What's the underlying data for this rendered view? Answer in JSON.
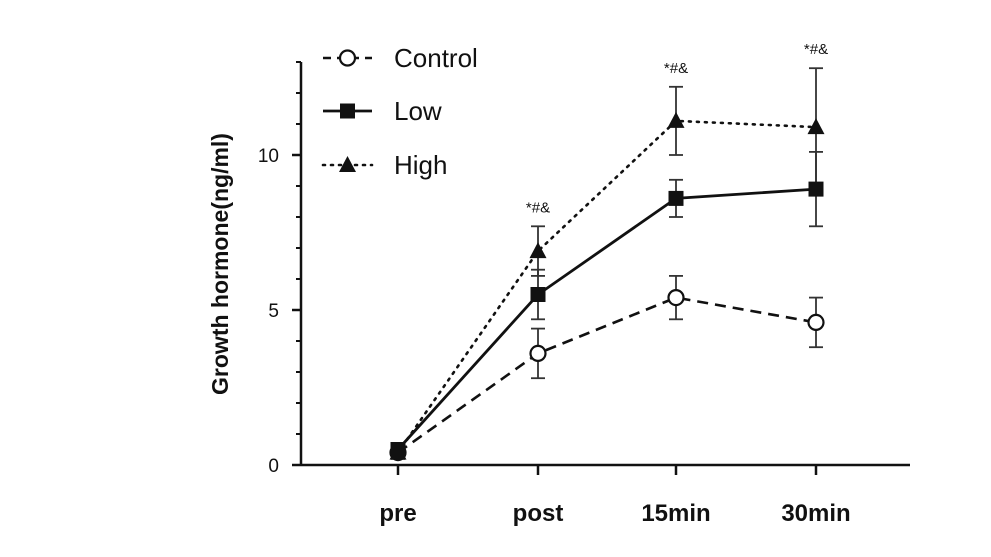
{
  "chart_data": {
    "type": "line",
    "title": "",
    "xlabel": "",
    "ylabel": "Growth hormone(ng/ml)",
    "categories": [
      "pre",
      "post",
      "15min",
      "30min"
    ],
    "ylim": [
      0,
      13
    ],
    "yticks": [
      0,
      5,
      10
    ],
    "grid": false,
    "legend_position": "top-left",
    "series": [
      {
        "name": "Control",
        "values": [
          0.4,
          3.6,
          5.4,
          4.6
        ],
        "errors": [
          0.2,
          0.8,
          0.7,
          0.8
        ],
        "marker": "open-circle",
        "line": "dashed"
      },
      {
        "name": "Low",
        "values": [
          0.5,
          5.5,
          8.6,
          8.9
        ],
        "errors": [
          0.2,
          0.8,
          0.6,
          1.2
        ],
        "marker": "square",
        "line": "solid"
      },
      {
        "name": "High",
        "values": [
          0.4,
          6.9,
          11.1,
          10.9
        ],
        "errors": [
          0.2,
          0.8,
          1.1,
          1.9
        ],
        "marker": "triangle",
        "line": "dotted"
      }
    ],
    "annotations": [
      {
        "category": "post",
        "text": "*#&"
      },
      {
        "category": "15min",
        "text": "*#&"
      },
      {
        "category": "30min",
        "text": "*#&"
      }
    ]
  }
}
